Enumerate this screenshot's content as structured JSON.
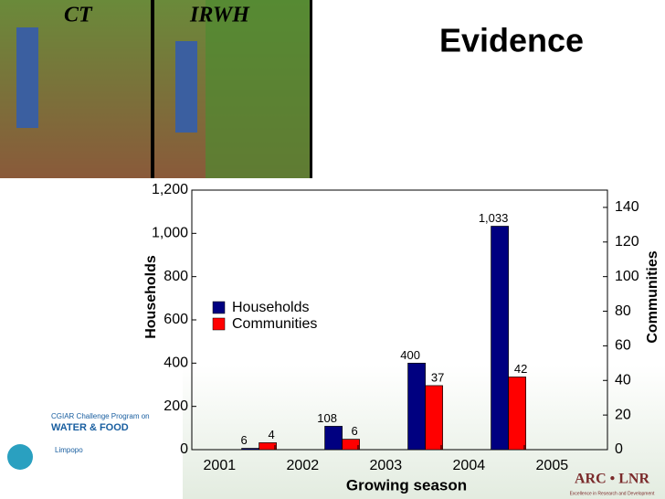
{
  "photos": {
    "labels": [
      "CT",
      "IRWH"
    ]
  },
  "chart_data": {
    "type": "bar",
    "title": "Evidence",
    "x_label": "Growing season",
    "y_label": "Households",
    "y2_label": "Communities",
    "categories": [
      "2001",
      "2002",
      "2003",
      "2004",
      "2005"
    ],
    "series": [
      {
        "name": "Households",
        "color": "#000080",
        "values": [
          6,
          108,
          400,
          1033,
          null
        ],
        "value_labels": [
          "6",
          "108",
          "400",
          "1,033",
          null
        ]
      },
      {
        "name": "Communities",
        "color": "#ff0000",
        "axis": "y2",
        "values": [
          4,
          6,
          37,
          42,
          null
        ]
      }
    ],
    "ylim": [
      0,
      1200
    ],
    "yticks": [
      0,
      200,
      400,
      600,
      800,
      {
        "value": 1000,
        "label": "1,000"
      },
      {
        "value": 1200,
        "label": "1,200"
      }
    ],
    "y2lim": [
      0,
      150
    ],
    "y2ticks": [
      0,
      20,
      40,
      60,
      80,
      100,
      120,
      140
    ],
    "legend": "upper left"
  },
  "logos": {
    "left": [
      "CGIAR Challenge Program on",
      "WATER & FOOD",
      "Limpopo"
    ],
    "right": [
      "ARC • LNR",
      "Excellence in Research and Development"
    ]
  }
}
